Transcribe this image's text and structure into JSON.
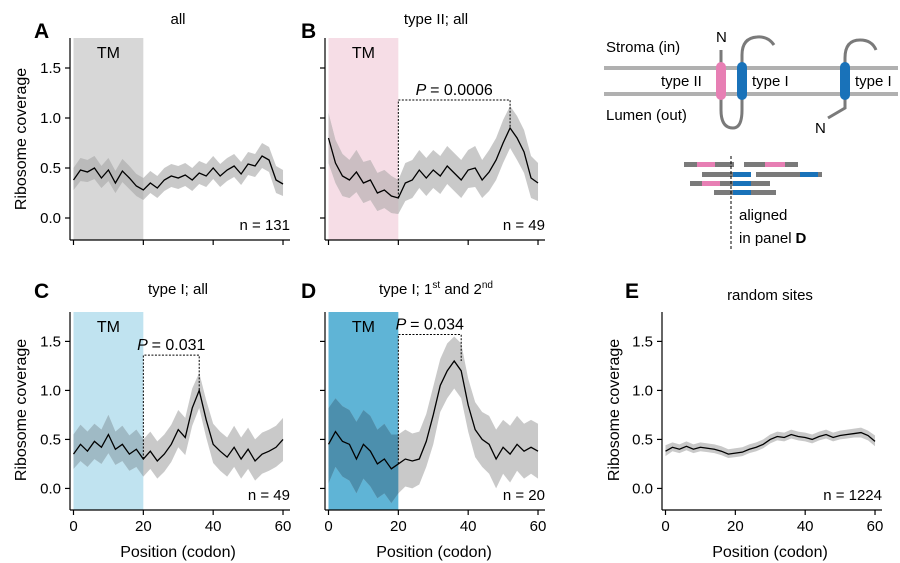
{
  "figure": {
    "xlabel": "Position (codon)",
    "ylabel": "Ribosome coverage",
    "tm_label": "TM",
    "x_ticks": [
      0,
      20,
      40,
      60
    ],
    "y_ticks": [
      0.0,
      0.5,
      1.0,
      1.5
    ],
    "xlim": [
      -1,
      62
    ],
    "ylim": [
      -0.22,
      1.8
    ]
  },
  "chart_data": [
    {
      "type": "line",
      "panel": "A",
      "title": "all",
      "n_label": "n = 131",
      "tm_range": [
        0,
        20
      ],
      "tm_color": "#d7d7d7",
      "tm_fill": "#d7d7d7",
      "tm_band": "#b8b8b8",
      "xlim": [
        -1,
        62
      ],
      "ylim": [
        -0.22,
        1.8
      ],
      "x": [
        0,
        2,
        4,
        6,
        8,
        10,
        12,
        14,
        16,
        18,
        20,
        22,
        24,
        26,
        28,
        30,
        32,
        34,
        36,
        38,
        40,
        42,
        44,
        46,
        48,
        50,
        52,
        54,
        56,
        58,
        60
      ],
      "y": [
        0.38,
        0.48,
        0.46,
        0.5,
        0.4,
        0.48,
        0.35,
        0.47,
        0.4,
        0.32,
        0.28,
        0.35,
        0.3,
        0.38,
        0.42,
        0.4,
        0.43,
        0.38,
        0.45,
        0.42,
        0.5,
        0.42,
        0.48,
        0.52,
        0.44,
        0.54,
        0.52,
        0.62,
        0.58,
        0.38,
        0.34
      ],
      "lower": [
        0.28,
        0.37,
        0.36,
        0.39,
        0.3,
        0.37,
        0.25,
        0.36,
        0.29,
        0.22,
        0.18,
        0.25,
        0.2,
        0.27,
        0.31,
        0.29,
        0.32,
        0.27,
        0.34,
        0.31,
        0.39,
        0.31,
        0.37,
        0.41,
        0.33,
        0.43,
        0.41,
        0.5,
        0.46,
        0.25,
        0.22
      ],
      "upper": [
        0.5,
        0.6,
        0.58,
        0.62,
        0.52,
        0.6,
        0.47,
        0.59,
        0.52,
        0.44,
        0.4,
        0.47,
        0.42,
        0.5,
        0.54,
        0.52,
        0.55,
        0.5,
        0.57,
        0.54,
        0.62,
        0.54,
        0.6,
        0.64,
        0.56,
        0.66,
        0.64,
        0.75,
        0.71,
        0.52,
        0.48
      ],
      "bracket": null
    },
    {
      "type": "line",
      "panel": "B",
      "title": "type II; all",
      "n_label": "n = 49",
      "tm_range": [
        0,
        20
      ],
      "tm_color": "#f6dde6",
      "tm_fill": "#f6dde6",
      "tm_band": "#cbbcc1",
      "xlim": [
        -1,
        62
      ],
      "ylim": [
        -0.22,
        1.8
      ],
      "x": [
        0,
        2,
        4,
        6,
        8,
        10,
        12,
        14,
        16,
        18,
        20,
        22,
        24,
        26,
        28,
        30,
        32,
        34,
        36,
        38,
        40,
        42,
        44,
        46,
        48,
        50,
        52,
        54,
        56,
        58,
        60
      ],
      "y": [
        0.8,
        0.55,
        0.42,
        0.38,
        0.46,
        0.35,
        0.38,
        0.25,
        0.28,
        0.22,
        0.2,
        0.35,
        0.38,
        0.48,
        0.4,
        0.48,
        0.42,
        0.52,
        0.45,
        0.38,
        0.48,
        0.5,
        0.38,
        0.46,
        0.58,
        0.75,
        0.9,
        0.8,
        0.66,
        0.4,
        0.35
      ],
      "lower": [
        0.55,
        0.35,
        0.22,
        0.2,
        0.26,
        0.15,
        0.18,
        0.07,
        0.1,
        0.05,
        0.04,
        0.17,
        0.2,
        0.3,
        0.22,
        0.3,
        0.24,
        0.34,
        0.27,
        0.2,
        0.3,
        0.31,
        0.2,
        0.27,
        0.38,
        0.55,
        0.7,
        0.58,
        0.45,
        0.2,
        0.17
      ],
      "upper": [
        1.05,
        0.78,
        0.64,
        0.58,
        0.68,
        0.56,
        0.58,
        0.45,
        0.48,
        0.42,
        0.38,
        0.55,
        0.58,
        0.68,
        0.6,
        0.68,
        0.62,
        0.72,
        0.65,
        0.58,
        0.68,
        0.72,
        0.58,
        0.68,
        0.8,
        0.98,
        1.12,
        1.02,
        0.88,
        0.62,
        0.55
      ],
      "bracket": {
        "label": "= 0.0006",
        "label_p": "P",
        "x_start": 20,
        "x_end": 52,
        "y": 1.18,
        "y_start": 0.2,
        "y_end": 0.9
      }
    },
    {
      "type": "line",
      "panel": "C",
      "title": "type I; all",
      "n_label": "n = 49",
      "tm_range": [
        0,
        20
      ],
      "tm_color": "#c0e3f0",
      "tm_fill": "#c0e3f0",
      "tm_band": "#9ab8c4",
      "xlim": [
        -1,
        62
      ],
      "ylim": [
        -0.22,
        1.8
      ],
      "x": [
        0,
        2,
        4,
        6,
        8,
        10,
        12,
        14,
        16,
        18,
        20,
        22,
        24,
        26,
        28,
        30,
        32,
        34,
        36,
        38,
        40,
        42,
        44,
        46,
        48,
        50,
        52,
        54,
        56,
        58,
        60
      ],
      "y": [
        0.35,
        0.45,
        0.38,
        0.48,
        0.42,
        0.55,
        0.4,
        0.45,
        0.35,
        0.4,
        0.3,
        0.38,
        0.28,
        0.35,
        0.45,
        0.6,
        0.52,
        0.82,
        1.0,
        0.7,
        0.45,
        0.38,
        0.32,
        0.42,
        0.3,
        0.4,
        0.28,
        0.35,
        0.38,
        0.42,
        0.5
      ],
      "lower": [
        0.2,
        0.28,
        0.22,
        0.3,
        0.25,
        0.36,
        0.24,
        0.28,
        0.18,
        0.22,
        0.12,
        0.2,
        0.1,
        0.17,
        0.27,
        0.42,
        0.34,
        0.64,
        0.82,
        0.52,
        0.26,
        0.18,
        0.12,
        0.22,
        0.1,
        0.2,
        0.08,
        0.15,
        0.18,
        0.22,
        0.28
      ],
      "upper": [
        0.55,
        0.65,
        0.58,
        0.66,
        0.6,
        0.75,
        0.58,
        0.64,
        0.54,
        0.6,
        0.5,
        0.58,
        0.48,
        0.55,
        0.65,
        0.8,
        0.72,
        1.02,
        1.18,
        0.9,
        0.66,
        0.58,
        0.52,
        0.64,
        0.52,
        0.62,
        0.5,
        0.57,
        0.6,
        0.64,
        0.72
      ],
      "bracket": {
        "label": "= 0.031",
        "label_p": "P",
        "x_start": 20,
        "x_end": 36,
        "y": 1.36,
        "y_start": 0.3,
        "y_end": 1.0
      }
    },
    {
      "type": "line",
      "panel": "D",
      "title": "type I; 1st and 2nd",
      "title_main": "type I; 1",
      "title_sup1": "st",
      "title_mid": " and 2",
      "title_sup2": "nd",
      "n_label": "n = 20",
      "tm_range": [
        0,
        20
      ],
      "tm_color": "#5fb4d6",
      "tm_fill": "#5fb4d6",
      "tm_band": "#3f88aa",
      "xlim": [
        -1,
        62
      ],
      "ylim": [
        -0.22,
        1.8
      ],
      "x": [
        0,
        2,
        4,
        6,
        8,
        10,
        12,
        14,
        16,
        18,
        20,
        22,
        24,
        26,
        28,
        30,
        32,
        34,
        36,
        38,
        40,
        42,
        44,
        46,
        48,
        50,
        52,
        54,
        56,
        58,
        60
      ],
      "y": [
        0.45,
        0.58,
        0.48,
        0.45,
        0.3,
        0.45,
        0.38,
        0.25,
        0.3,
        0.2,
        0.25,
        0.3,
        0.28,
        0.3,
        0.48,
        0.75,
        1.05,
        1.2,
        1.3,
        1.2,
        0.85,
        0.6,
        0.5,
        0.45,
        0.3,
        0.42,
        0.35,
        0.45,
        0.38,
        0.42,
        0.38
      ],
      "lower": [
        0.05,
        0.22,
        0.12,
        0.08,
        -0.05,
        0.1,
        0.02,
        -0.1,
        -0.05,
        -0.15,
        -0.05,
        0.02,
        0.0,
        0.04,
        0.22,
        0.45,
        0.78,
        0.92,
        1.02,
        0.92,
        0.58,
        0.32,
        0.22,
        0.15,
        0.0,
        0.15,
        0.06,
        0.18,
        0.1,
        0.15,
        0.1
      ],
      "upper": [
        0.82,
        0.92,
        0.84,
        0.8,
        0.68,
        0.8,
        0.74,
        0.6,
        0.66,
        0.55,
        0.55,
        0.6,
        0.56,
        0.58,
        0.76,
        1.04,
        1.32,
        1.48,
        1.55,
        1.48,
        1.12,
        0.88,
        0.78,
        0.74,
        0.6,
        0.7,
        0.64,
        0.74,
        0.66,
        0.7,
        0.66
      ],
      "bracket": {
        "label": "= 0.034",
        "label_p": "P",
        "x_start": 20,
        "x_end": 38,
        "y": 1.57,
        "y_start": 0.25,
        "y_end": 1.3
      }
    },
    {
      "type": "line",
      "panel": "E",
      "title": "random sites",
      "n_label": "n = 1224",
      "tm_range": null,
      "xlim": [
        -1,
        62
      ],
      "ylim": [
        -0.22,
        1.8
      ],
      "x": [
        0,
        2,
        4,
        6,
        8,
        10,
        12,
        14,
        16,
        18,
        20,
        22,
        24,
        26,
        28,
        30,
        32,
        34,
        36,
        38,
        40,
        42,
        44,
        46,
        48,
        50,
        52,
        54,
        56,
        58,
        60
      ],
      "y": [
        0.38,
        0.42,
        0.4,
        0.43,
        0.4,
        0.42,
        0.41,
        0.4,
        0.38,
        0.35,
        0.36,
        0.37,
        0.4,
        0.42,
        0.45,
        0.5,
        0.53,
        0.52,
        0.55,
        0.53,
        0.52,
        0.5,
        0.53,
        0.55,
        0.52,
        0.54,
        0.55,
        0.56,
        0.57,
        0.54,
        0.48
      ],
      "lower": [
        0.33,
        0.38,
        0.36,
        0.39,
        0.36,
        0.38,
        0.37,
        0.36,
        0.34,
        0.31,
        0.32,
        0.33,
        0.36,
        0.38,
        0.41,
        0.46,
        0.49,
        0.48,
        0.51,
        0.49,
        0.48,
        0.46,
        0.49,
        0.51,
        0.48,
        0.5,
        0.51,
        0.52,
        0.52,
        0.49,
        0.43
      ],
      "upper": [
        0.44,
        0.47,
        0.45,
        0.48,
        0.45,
        0.47,
        0.46,
        0.45,
        0.43,
        0.4,
        0.41,
        0.42,
        0.45,
        0.47,
        0.5,
        0.55,
        0.58,
        0.57,
        0.6,
        0.58,
        0.57,
        0.55,
        0.58,
        0.6,
        0.57,
        0.59,
        0.6,
        0.61,
        0.62,
        0.59,
        0.54
      ],
      "bracket": null
    }
  ],
  "schematic": {
    "stroma_label": "Stroma (in)",
    "lumen_label": "Lumen (out)",
    "type2_label": "type II",
    "type1_label": "type I",
    "type1_label_right": "type I",
    "n_label_1": "N",
    "n_label_2": "N",
    "aligned_label_1": "aligned",
    "aligned_label_2": "in panel",
    "aligned_label_bold": "D",
    "pink_color": "#e77fb4",
    "blue_color": "#1972b9",
    "membrane_color": "#b0b0b0",
    "chain_color": "#7a7a7a"
  }
}
